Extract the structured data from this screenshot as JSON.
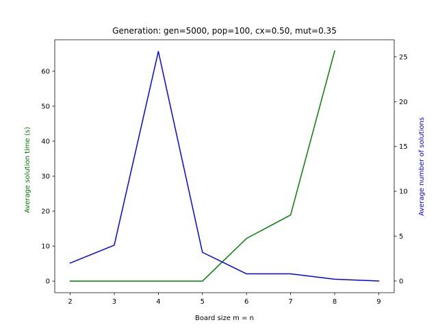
{
  "chart_data": {
    "type": "line",
    "title": "Generation: gen=5000, pop=100, cx=0.50, mut=0.35",
    "xlabel": "Board size m = n",
    "ylabel_left": "Average solution time (s)",
    "ylabel_right": "Average number of solutions",
    "x": [
      2,
      3,
      4,
      5,
      6,
      7,
      8,
      9
    ],
    "xlim": [
      1.65,
      9.35
    ],
    "ylim_left": [
      -3.3,
      69.0
    ],
    "ylim_right": [
      -1.3,
      26.9
    ],
    "x_ticks": [
      2,
      3,
      4,
      5,
      6,
      7,
      8,
      9
    ],
    "y_ticks_left": [
      0,
      10,
      20,
      30,
      40,
      50,
      60
    ],
    "y_ticks_right": [
      0,
      5,
      10,
      15,
      20,
      25
    ],
    "grid": false,
    "colors": {
      "left": "#008000",
      "right": "#0000ff",
      "axis": "#000000"
    },
    "series": [
      {
        "axis": "left",
        "x": [
          2,
          3,
          4,
          5,
          6,
          7,
          8
        ],
        "values": [
          0,
          0,
          0,
          0,
          12.2,
          18.9,
          65.8
        ]
      },
      {
        "axis": "right",
        "x": [
          2,
          3,
          4,
          5,
          6,
          7,
          8,
          9
        ],
        "values": [
          2.0,
          4.0,
          25.6,
          3.2,
          0.8,
          0.8,
          0.2,
          0.0
        ]
      }
    ]
  }
}
